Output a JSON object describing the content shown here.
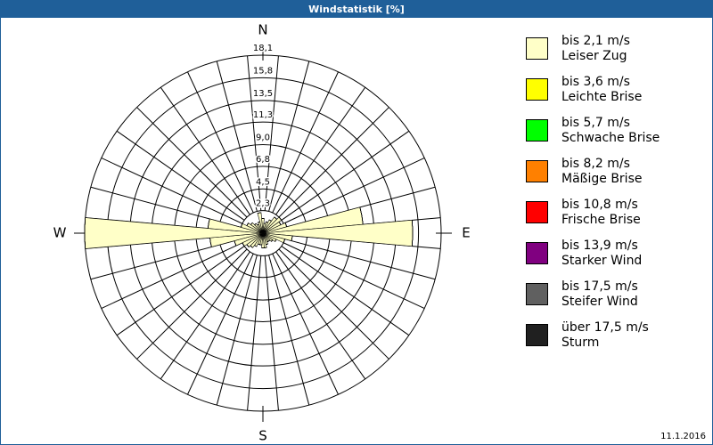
{
  "chart_data": {
    "type": "windrose",
    "title": "Windstatistik [%]",
    "date": "11.1.2016",
    "compass": [
      "N",
      "E",
      "S",
      "W"
    ],
    "ylim": [
      0,
      18.1
    ],
    "yticks": [
      {
        "value": 2.3,
        "label": "2,3"
      },
      {
        "value": 4.5,
        "label": "4,5"
      },
      {
        "value": 6.8,
        "label": "6,8"
      },
      {
        "value": 9.0,
        "label": "9,0"
      },
      {
        "value": 11.3,
        "label": "11,3"
      },
      {
        "value": 13.5,
        "label": "13,5"
      },
      {
        "value": 15.8,
        "label": "15,8"
      },
      {
        "value": 18.1,
        "label": "18,1"
      }
    ],
    "series": [
      {
        "name": "bis 2,1 m/s",
        "description": "Leiser Zug",
        "color": "#ffffc8",
        "values": [
          1.5,
          1.0,
          1.2,
          1.5,
          2.0,
          2.3,
          2.0,
          2.5,
          10.2,
          15.2,
          3.0,
          2.3,
          1.5,
          1.2,
          1.0,
          1.0,
          1.2,
          1.5,
          1.5,
          1.2,
          1.2,
          1.5,
          1.8,
          2.0,
          2.3,
          3.0,
          5.4,
          18.1,
          5.6,
          2.3,
          1.8,
          1.5,
          1.2,
          1.0,
          1.2,
          2.1
        ]
      },
      {
        "name": "bis 3,6 m/s",
        "description": "Leichte Brise",
        "color": "#ffff00",
        "values": [
          0,
          0,
          0,
          0,
          0,
          0,
          0,
          0,
          0,
          0,
          0,
          0,
          0,
          0,
          0,
          0,
          0,
          0,
          0,
          0,
          0,
          0,
          0,
          0,
          0,
          0,
          0,
          0,
          0,
          0,
          0,
          0,
          0,
          0,
          0,
          0
        ]
      },
      {
        "name": "bis 5,7 m/s",
        "description": "Schwache Brise",
        "color": "#00ff00",
        "values": [
          0,
          0,
          0,
          0,
          0,
          0,
          0,
          0,
          0,
          0,
          0,
          0,
          0,
          0,
          0,
          0,
          0,
          0,
          0,
          0,
          0,
          0,
          0,
          0,
          0,
          0,
          0,
          0,
          0,
          0,
          0,
          0,
          0,
          0,
          0,
          0
        ]
      },
      {
        "name": "bis 8,2 m/s",
        "description": "Mäßige Brise",
        "color": "#ff8000",
        "values": [
          0,
          0,
          0,
          0,
          0,
          0,
          0,
          0,
          0,
          0,
          0,
          0,
          0,
          0,
          0,
          0,
          0,
          0,
          0,
          0,
          0,
          0,
          0,
          0,
          0,
          0,
          0,
          0,
          0,
          0,
          0,
          0,
          0,
          0,
          0,
          0
        ]
      },
      {
        "name": "bis 10,8 m/s",
        "description": "Frische Brise",
        "color": "#ff0000",
        "values": [
          0,
          0,
          0,
          0,
          0,
          0,
          0,
          0,
          0,
          0,
          0,
          0,
          0,
          0,
          0,
          0,
          0,
          0,
          0,
          0,
          0,
          0,
          0,
          0,
          0,
          0,
          0,
          0,
          0,
          0,
          0,
          0,
          0,
          0,
          0,
          0
        ]
      },
      {
        "name": "bis 13,9 m/s",
        "description": "Starker Wind",
        "color": "#800080",
        "values": [
          0,
          0,
          0,
          0,
          0,
          0,
          0,
          0,
          0,
          0,
          0,
          0,
          0,
          0,
          0,
          0,
          0,
          0,
          0,
          0,
          0,
          0,
          0,
          0,
          0,
          0,
          0,
          0,
          0,
          0,
          0,
          0,
          0,
          0,
          0,
          0
        ]
      },
      {
        "name": "bis 17,5 m/s",
        "description": "Steifer Wind",
        "color": "#606060",
        "values": [
          0,
          0,
          0,
          0,
          0,
          0,
          0,
          0,
          0,
          0,
          0,
          0,
          0,
          0,
          0,
          0,
          0,
          0,
          0,
          0,
          0,
          0,
          0,
          0,
          0,
          0,
          0,
          0,
          0,
          0,
          0,
          0,
          0,
          0,
          0,
          0
        ]
      },
      {
        "name": "über 17,5 m/s",
        "description": "Sturm",
        "color": "#202020",
        "values": [
          0,
          0,
          0,
          0,
          0,
          0,
          0,
          0,
          0,
          0,
          0,
          0,
          0,
          0,
          0,
          0,
          0,
          0,
          0,
          0,
          0,
          0,
          0,
          0,
          0,
          0,
          0,
          0,
          0,
          0,
          0,
          0,
          0,
          0,
          0,
          0
        ]
      }
    ]
  }
}
